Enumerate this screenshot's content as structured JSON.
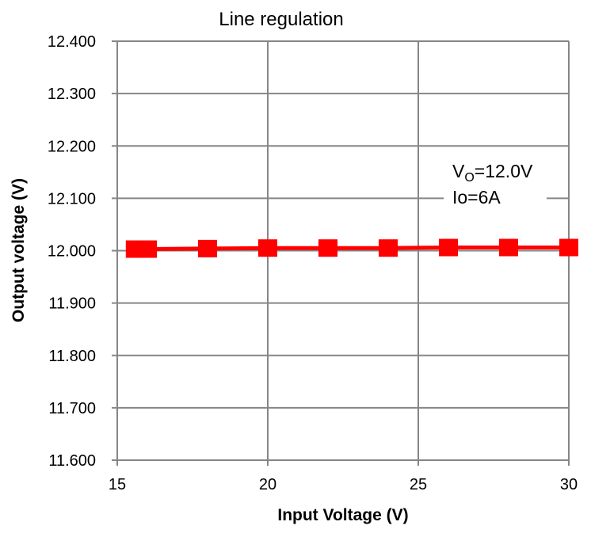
{
  "chart_data": {
    "type": "line",
    "title": "Line regulation",
    "xlabel": "Input Voltage (V)",
    "ylabel": "Output voltage (V)",
    "xlim": [
      15,
      30
    ],
    "ylim": [
      11.6,
      12.4
    ],
    "x_ticks": [
      "15",
      "20",
      "25",
      "30"
    ],
    "y_ticks": [
      "11.600",
      "11.700",
      "11.800",
      "11.900",
      "12.000",
      "12.100",
      "12.200",
      "12.300",
      "12.400"
    ],
    "grid": true,
    "line_color": "#ff0000",
    "series": [
      {
        "x": [
          15.6,
          16,
          18,
          20,
          22,
          24,
          26,
          28,
          30
        ],
        "y": [
          12.003,
          12.003,
          12.004,
          12.005,
          12.005,
          12.005,
          12.006,
          12.006,
          12.006
        ]
      }
    ],
    "annotations": {
      "vo_prefix": "V",
      "vo_sub": "O",
      "vo_value": "=12.0V",
      "io": "Io=6A"
    }
  }
}
